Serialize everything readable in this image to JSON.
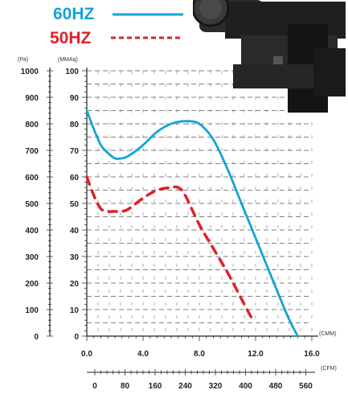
{
  "legend": {
    "hz60_label": "60HZ",
    "hz50_label": "50HZ",
    "hz60_color": "#14a3d6",
    "hz50_color": "#e0202a"
  },
  "units": {
    "pa": "(Pa)",
    "mmaq": "(MMAq)",
    "cmm": "(CMM)",
    "cfm": "(CFM)"
  },
  "chart_data": {
    "type": "line",
    "title": "",
    "xlabel": "(CMM)",
    "x2label": "(CFM)",
    "ylabel_left": "(Pa)",
    "ylabel_right": "(MMAq)",
    "xlim": [
      0,
      16
    ],
    "ylim": [
      0,
      100
    ],
    "y2lim": [
      0,
      1000
    ],
    "grid": true,
    "legend_position": "top-left",
    "x_ticks": [
      "0.0",
      "4.0",
      "8.0",
      "12.0",
      "16.0"
    ],
    "x_tick_values": [
      0,
      4,
      8,
      12,
      16
    ],
    "cfm_ticks": [
      "0",
      "80",
      "160",
      "240",
      "320",
      "400",
      "480",
      "560"
    ],
    "mmaq_ticks": [
      "0",
      "10",
      "20",
      "30",
      "40",
      "50",
      "60",
      "70",
      "80",
      "90",
      "100"
    ],
    "pa_ticks": [
      "0",
      "100",
      "200",
      "300",
      "400",
      "500",
      "600",
      "700",
      "800",
      "900",
      "1000"
    ],
    "series": [
      {
        "name": "60HZ",
        "style": "solid",
        "color": "#14a3d6",
        "x": [
          0.0,
          0.5,
          1.0,
          1.5,
          2.0,
          2.5,
          3.0,
          4.0,
          5.0,
          6.0,
          7.0,
          8.0,
          9.0,
          10.0,
          11.0,
          12.0,
          13.0,
          14.0,
          14.5,
          15.0
        ],
        "y": [
          85,
          78,
          72,
          69,
          67,
          67,
          68,
          72,
          77,
          80,
          81,
          80,
          74,
          63,
          50,
          37,
          24,
          11,
          5,
          0
        ]
      },
      {
        "name": "50HZ",
        "style": "dashed",
        "color": "#e0202a",
        "x": [
          0.0,
          0.5,
          1.0,
          1.5,
          2.0,
          2.5,
          3.0,
          4.0,
          5.0,
          6.0,
          6.5,
          7.0,
          8.0,
          9.0,
          10.0,
          11.0,
          11.8
        ],
        "y": [
          60,
          53,
          48,
          47,
          47,
          47,
          48,
          52,
          55,
          56,
          56,
          53,
          42,
          33,
          24,
          14,
          6
        ]
      }
    ]
  }
}
